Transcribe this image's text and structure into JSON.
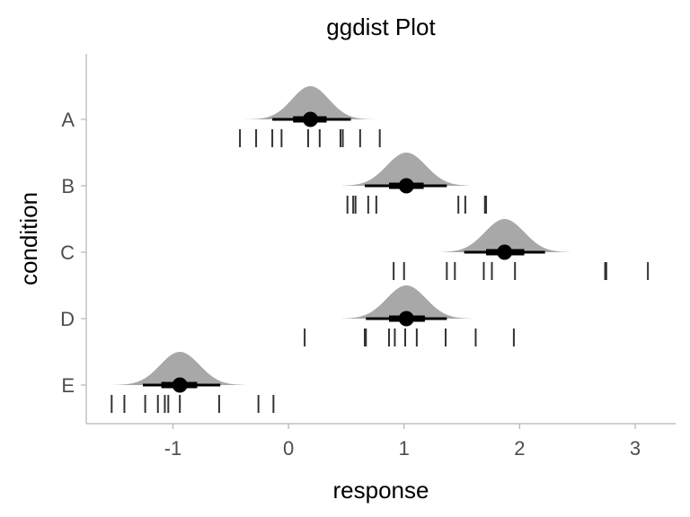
{
  "chart_data": {
    "type": "halfeye",
    "title": "ggdist Plot",
    "xlabel": "response",
    "ylabel": "condition",
    "xlim": [
      -1.75,
      3.35
    ],
    "x_ticks": [
      -1,
      0,
      1,
      2,
      3
    ],
    "x_tick_labels": [
      "-1",
      "0",
      "1",
      "2",
      "3"
    ],
    "categories": [
      "A",
      "B",
      "C",
      "D",
      "E"
    ],
    "grid": false,
    "fill_color": "#a8a8a8",
    "point_color": "#000000",
    "rug_color": "#333333",
    "groups": [
      {
        "condition": "A",
        "median": 0.19,
        "sd": 0.16,
        "interval_66": [
          0.04,
          0.33
        ],
        "interval_95": [
          -0.14,
          0.54
        ],
        "slab_range": [
          -0.39,
          0.78
        ],
        "observations": [
          -0.42,
          -0.28,
          -0.14,
          -0.06,
          0.17,
          0.27,
          0.45,
          0.47,
          0.62,
          0.79
        ]
      },
      {
        "condition": "B",
        "median": 1.02,
        "sd": 0.17,
        "interval_66": [
          0.87,
          1.17
        ],
        "interval_95": [
          0.66,
          1.37
        ],
        "slab_range": [
          0.46,
          1.57
        ],
        "observations": [
          0.51,
          0.56,
          0.58,
          0.69,
          0.76,
          1.47,
          1.53,
          1.7,
          1.71
        ]
      },
      {
        "condition": "C",
        "median": 1.87,
        "sd": 0.17,
        "interval_66": [
          1.71,
          2.04
        ],
        "interval_95": [
          1.52,
          2.22
        ],
        "slab_range": [
          1.32,
          2.44
        ],
        "observations": [
          0.91,
          1.0,
          1.37,
          1.44,
          1.69,
          1.76,
          1.96,
          2.74,
          2.75,
          3.11
        ]
      },
      {
        "condition": "D",
        "median": 1.02,
        "sd": 0.17,
        "interval_66": [
          0.87,
          1.18
        ],
        "interval_95": [
          0.67,
          1.37
        ],
        "slab_range": [
          0.46,
          1.58
        ],
        "observations": [
          0.14,
          0.66,
          0.67,
          0.87,
          0.92,
          1.01,
          1.11,
          1.36,
          1.62,
          1.95
        ]
      },
      {
        "condition": "E",
        "median": -0.94,
        "sd": 0.17,
        "interval_66": [
          -1.1,
          -0.79
        ],
        "interval_95": [
          -1.26,
          -0.59
        ],
        "slab_range": [
          -1.52,
          -0.37
        ],
        "observations": [
          -1.53,
          -1.42,
          -1.24,
          -1.13,
          -1.07,
          -1.04,
          -0.94,
          -0.6,
          -0.26,
          -0.13
        ]
      }
    ]
  }
}
